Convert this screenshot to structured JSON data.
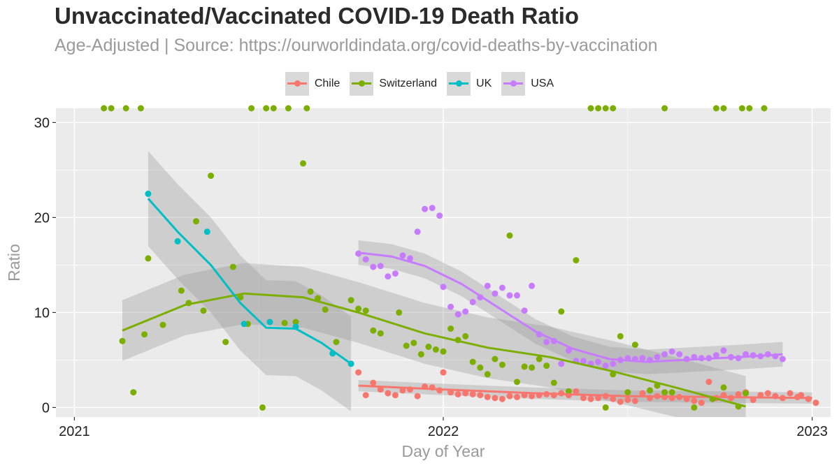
{
  "title": "Unvaccinated/Vaccinated COVID-19 Death Ratio",
  "subtitle": "Age-Adjusted | Source: https://ourworldindata.org/covid-deaths-by-vaccination",
  "chart_data": {
    "type": "scatter",
    "xlabel": "Day of Year",
    "ylabel": "Ratio",
    "xlim": [
      2020.95,
      2023.05
    ],
    "ylim": [
      -1,
      31.5
    ],
    "x_ticks": [
      "2021",
      "2022",
      "2023"
    ],
    "y_ticks": [
      "0",
      "10",
      "20",
      "30"
    ],
    "grid": true,
    "legend_position": "top",
    "colors": {
      "Chile": "#F8766D",
      "Switzerland": "#7CAE00",
      "UK": "#00BFC4",
      "USA": "#C77CFF",
      "band": "#999999",
      "panel": "#EBEBEB"
    },
    "series": [
      {
        "name": "Chile",
        "points": [
          [
            2021.77,
            3.7
          ],
          [
            2021.79,
            1.3
          ],
          [
            2021.81,
            2.6
          ],
          [
            2021.83,
            1.9
          ],
          [
            2021.85,
            1.5
          ],
          [
            2021.87,
            1.3
          ],
          [
            2021.89,
            1.8
          ],
          [
            2021.91,
            1.9
          ],
          [
            2021.93,
            1.2
          ],
          [
            2021.95,
            2.2
          ],
          [
            2021.97,
            2.1
          ],
          [
            2021.99,
            1.8
          ],
          [
            2022.0,
            3.7
          ],
          [
            2022.02,
            1.6
          ],
          [
            2022.04,
            1.4
          ],
          [
            2022.06,
            1.5
          ],
          [
            2022.08,
            1.4
          ],
          [
            2022.1,
            1.3
          ],
          [
            2022.12,
            1.1
          ],
          [
            2022.14,
            1.0
          ],
          [
            2022.16,
            0.9
          ],
          [
            2022.18,
            1.2
          ],
          [
            2022.2,
            1.1
          ],
          [
            2022.22,
            1.3
          ],
          [
            2022.24,
            1.2
          ],
          [
            2022.26,
            1.3
          ],
          [
            2022.28,
            1.4
          ],
          [
            2022.3,
            1.3
          ],
          [
            2022.32,
            1.5
          ],
          [
            2022.34,
            1.3
          ],
          [
            2022.36,
            1.7
          ],
          [
            2022.38,
            1.0
          ],
          [
            2022.4,
            0.9
          ],
          [
            2022.42,
            1.0
          ],
          [
            2022.44,
            1.2
          ],
          [
            2022.46,
            0.9
          ],
          [
            2022.48,
            0.6
          ],
          [
            2022.5,
            0.8
          ],
          [
            2022.52,
            0.7
          ],
          [
            2022.54,
            1.5
          ],
          [
            2022.56,
            1.0
          ],
          [
            2022.58,
            1.2
          ],
          [
            2022.6,
            1.1
          ],
          [
            2022.62,
            1.0
          ],
          [
            2022.64,
            1.1
          ],
          [
            2022.66,
            0.9
          ],
          [
            2022.68,
            0.7
          ],
          [
            2022.7,
            0.5
          ],
          [
            2022.72,
            2.7
          ],
          [
            2022.74,
            1.0
          ],
          [
            2022.76,
            1.3
          ],
          [
            2022.78,
            1.0
          ],
          [
            2022.8,
            1.4
          ],
          [
            2022.82,
            1.6
          ],
          [
            2022.84,
            0.8
          ],
          [
            2022.86,
            1.3
          ],
          [
            2022.88,
            1.5
          ],
          [
            2022.9,
            1.2
          ],
          [
            2022.92,
            1.0
          ],
          [
            2022.94,
            1.5
          ],
          [
            2022.96,
            1.1
          ],
          [
            2022.97,
            1.3
          ],
          [
            2022.99,
            0.9
          ],
          [
            2023.01,
            0.5
          ]
        ],
        "trend": [
          [
            2021.77,
            2.3
          ],
          [
            2022.0,
            1.9
          ],
          [
            2022.25,
            1.5
          ],
          [
            2022.5,
            1.2
          ],
          [
            2022.75,
            1.1
          ],
          [
            2023.0,
            1.0
          ]
        ]
      },
      {
        "name": "Switzerland",
        "points": [
          [
            2021.13,
            7.0
          ],
          [
            2021.16,
            1.6
          ],
          [
            2021.19,
            7.7
          ],
          [
            2021.2,
            15.7
          ],
          [
            2021.24,
            8.7
          ],
          [
            2021.29,
            12.3
          ],
          [
            2021.31,
            11.0
          ],
          [
            2021.33,
            19.6
          ],
          [
            2021.35,
            10.2
          ],
          [
            2021.37,
            24.4
          ],
          [
            2021.41,
            6.9
          ],
          [
            2021.43,
            14.8
          ],
          [
            2021.45,
            11.6
          ],
          [
            2021.47,
            8.8
          ],
          [
            2021.51,
            0.0
          ],
          [
            2021.57,
            8.9
          ],
          [
            2021.6,
            9.0
          ],
          [
            2021.62,
            25.7
          ],
          [
            2021.64,
            12.2
          ],
          [
            2021.66,
            11.5
          ],
          [
            2021.68,
            10.3
          ],
          [
            2021.71,
            6.9
          ],
          [
            2021.75,
            11.3
          ],
          [
            2021.77,
            10.4
          ],
          [
            2021.79,
            10.2
          ],
          [
            2021.81,
            8.1
          ],
          [
            2021.83,
            7.8
          ],
          [
            2021.88,
            10.0
          ],
          [
            2021.9,
            6.5
          ],
          [
            2021.92,
            6.8
          ],
          [
            2021.94,
            5.6
          ],
          [
            2021.96,
            6.4
          ],
          [
            2021.98,
            6.1
          ],
          [
            2022.0,
            5.9
          ],
          [
            2022.02,
            8.3
          ],
          [
            2022.04,
            7.1
          ],
          [
            2022.06,
            7.5
          ],
          [
            2022.08,
            4.8
          ],
          [
            2022.1,
            4.2
          ],
          [
            2022.12,
            3.5
          ],
          [
            2022.14,
            5.1
          ],
          [
            2022.16,
            4.5
          ],
          [
            2022.18,
            18.1
          ],
          [
            2022.2,
            2.7
          ],
          [
            2022.22,
            4.3
          ],
          [
            2022.24,
            4.2
          ],
          [
            2022.26,
            5.1
          ],
          [
            2022.28,
            4.4
          ],
          [
            2022.3,
            2.6
          ],
          [
            2022.32,
            10.1
          ],
          [
            2022.34,
            1.7
          ],
          [
            2022.36,
            15.5
          ],
          [
            2022.44,
            0.0
          ],
          [
            2022.46,
            3.5
          ],
          [
            2022.48,
            7.5
          ],
          [
            2022.5,
            1.6
          ],
          [
            2022.52,
            6.6
          ],
          [
            2022.56,
            1.8
          ],
          [
            2022.58,
            2.3
          ],
          [
            2022.6,
            1.6
          ],
          [
            2022.62,
            1.6
          ],
          [
            2022.68,
            0.0
          ],
          [
            2022.73,
            0.9
          ],
          [
            2022.76,
            2.1
          ],
          [
            2022.8,
            0.1
          ],
          [
            2022.82,
            1.5
          ],
          [
            2021.08,
            31.5
          ],
          [
            2021.1,
            31.5
          ],
          [
            2021.14,
            31.5
          ],
          [
            2021.18,
            31.5
          ],
          [
            2021.48,
            31.5
          ],
          [
            2021.52,
            31.5
          ],
          [
            2021.54,
            31.5
          ],
          [
            2021.58,
            31.5
          ],
          [
            2021.63,
            31.5
          ],
          [
            2022.4,
            31.5
          ],
          [
            2022.42,
            31.5
          ],
          [
            2022.44,
            31.5
          ],
          [
            2022.46,
            31.5
          ],
          [
            2022.6,
            31.5
          ],
          [
            2022.74,
            31.5
          ],
          [
            2022.76,
            31.5
          ],
          [
            2022.81,
            31.5
          ],
          [
            2022.83,
            31.5
          ],
          [
            2022.87,
            31.5
          ]
        ],
        "trend": [
          [
            2021.13,
            8.1
          ],
          [
            2021.3,
            10.8
          ],
          [
            2021.46,
            12.0
          ],
          [
            2021.62,
            11.6
          ],
          [
            2021.77,
            10.0
          ],
          [
            2021.95,
            7.8
          ],
          [
            2022.12,
            6.3
          ],
          [
            2022.29,
            5.3
          ],
          [
            2022.46,
            3.8
          ],
          [
            2022.63,
            2.1
          ],
          [
            2022.82,
            0.1
          ]
        ]
      },
      {
        "name": "UK",
        "points": [
          [
            2021.2,
            22.5
          ],
          [
            2021.28,
            17.5
          ],
          [
            2021.36,
            18.5
          ],
          [
            2021.46,
            8.8
          ],
          [
            2021.53,
            9.0
          ],
          [
            2021.6,
            8.5
          ],
          [
            2021.7,
            5.7
          ],
          [
            2021.75,
            4.6
          ]
        ],
        "trend": [
          [
            2021.2,
            22.0
          ],
          [
            2021.28,
            18.5
          ],
          [
            2021.37,
            15.0
          ],
          [
            2021.45,
            11.0
          ],
          [
            2021.52,
            8.4
          ],
          [
            2021.6,
            8.3
          ],
          [
            2021.67,
            6.8
          ],
          [
            2021.75,
            4.6
          ]
        ]
      },
      {
        "name": "USA",
        "points": [
          [
            2021.77,
            16.2
          ],
          [
            2021.79,
            15.6
          ],
          [
            2021.81,
            14.8
          ],
          [
            2021.83,
            14.9
          ],
          [
            2021.85,
            13.8
          ],
          [
            2021.87,
            14.1
          ],
          [
            2021.89,
            16.0
          ],
          [
            2021.91,
            15.7
          ],
          [
            2021.93,
            18.5
          ],
          [
            2021.95,
            20.9
          ],
          [
            2021.97,
            21.0
          ],
          [
            2021.99,
            20.2
          ],
          [
            2022.0,
            12.7
          ],
          [
            2022.02,
            10.6
          ],
          [
            2022.04,
            9.8
          ],
          [
            2022.06,
            10.1
          ],
          [
            2022.08,
            11.1
          ],
          [
            2022.1,
            11.6
          ],
          [
            2022.12,
            12.8
          ],
          [
            2022.14,
            12.0
          ],
          [
            2022.16,
            12.6
          ],
          [
            2022.18,
            11.8
          ],
          [
            2022.2,
            11.8
          ],
          [
            2022.22,
            10.2
          ],
          [
            2022.24,
            12.8
          ],
          [
            2022.26,
            7.7
          ],
          [
            2022.28,
            6.9
          ],
          [
            2022.3,
            7.0
          ],
          [
            2022.32,
            4.6
          ],
          [
            2022.34,
            6.0
          ],
          [
            2022.36,
            4.9
          ],
          [
            2022.38,
            4.9
          ],
          [
            2022.4,
            4.6
          ],
          [
            2022.42,
            4.8
          ],
          [
            2022.44,
            4.4
          ],
          [
            2022.46,
            4.6
          ],
          [
            2022.48,
            5.0
          ],
          [
            2022.5,
            5.2
          ],
          [
            2022.52,
            5.1
          ],
          [
            2022.54,
            5.2
          ],
          [
            2022.56,
            5.0
          ],
          [
            2022.58,
            5.3
          ],
          [
            2022.6,
            5.6
          ],
          [
            2022.62,
            5.9
          ],
          [
            2022.64,
            5.6
          ],
          [
            2022.66,
            5.1
          ],
          [
            2022.68,
            5.3
          ],
          [
            2022.7,
            5.2
          ],
          [
            2022.72,
            5.2
          ],
          [
            2022.74,
            5.5
          ],
          [
            2022.76,
            6.0
          ],
          [
            2022.78,
            5.3
          ],
          [
            2022.8,
            5.2
          ],
          [
            2022.82,
            5.6
          ],
          [
            2022.84,
            5.5
          ],
          [
            2022.86,
            5.4
          ],
          [
            2022.88,
            5.6
          ],
          [
            2022.9,
            5.4
          ],
          [
            2022.92,
            5.1
          ]
        ],
        "trend": [
          [
            2021.77,
            16.3
          ],
          [
            2021.86,
            15.9
          ],
          [
            2021.95,
            14.9
          ],
          [
            2022.05,
            13.0
          ],
          [
            2022.15,
            10.5
          ],
          [
            2022.25,
            8.0
          ],
          [
            2022.35,
            6.2
          ],
          [
            2022.45,
            5.1
          ],
          [
            2022.55,
            4.8
          ],
          [
            2022.65,
            5.0
          ],
          [
            2022.8,
            5.3
          ],
          [
            2022.92,
            5.6
          ]
        ]
      }
    ]
  }
}
